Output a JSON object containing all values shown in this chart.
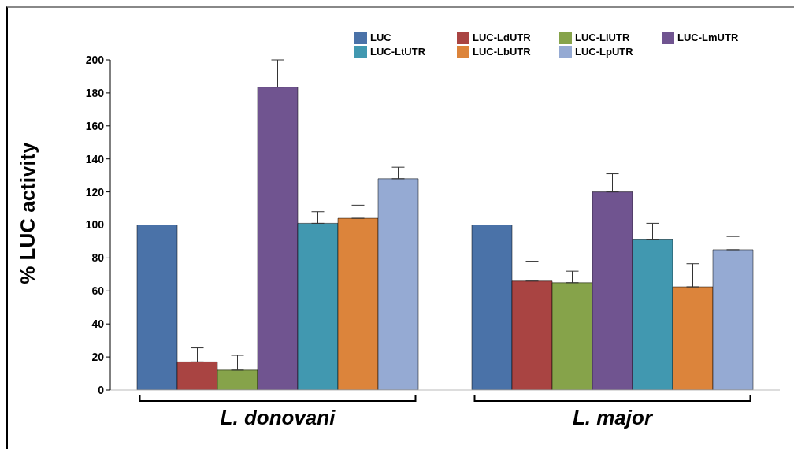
{
  "chart_data": {
    "type": "bar",
    "ylabel": "% LUC activity",
    "categories": [
      "L. donovani",
      "L. major"
    ],
    "series": [
      {
        "name": "LUC",
        "color": "#4a72a8",
        "values": [
          100,
          100
        ]
      },
      {
        "name": "LUC-LdUTR",
        "color": "#a94442",
        "values": [
          17,
          66
        ],
        "errors": [
          [
            17,
            25.5
          ],
          [
            66,
            78
          ]
        ]
      },
      {
        "name": "LUC-LiUTR",
        "color": "#86a34a",
        "values": [
          12,
          65
        ],
        "errors": [
          [
            12,
            21
          ],
          [
            65,
            72
          ]
        ]
      },
      {
        "name": "LUC-LmUTR",
        "color": "#705490",
        "values": [
          183.5,
          120
        ],
        "errors": [
          [
            183.5,
            200
          ],
          [
            120,
            131
          ]
        ]
      },
      {
        "name": "LUC-LtUTR",
        "color": "#4198b0",
        "values": [
          101,
          91
        ],
        "errors": [
          [
            101,
            108
          ],
          [
            91,
            101
          ]
        ]
      },
      {
        "name": "LUC-LbUTR",
        "color": "#dc843b",
        "values": [
          104,
          62.5
        ],
        "errors": [
          [
            104,
            112
          ],
          [
            62.5,
            76.5
          ]
        ]
      },
      {
        "name": "LUC-LpUTR",
        "color": "#95aad3",
        "values": [
          128,
          85
        ],
        "errors": [
          [
            128,
            135
          ],
          [
            85,
            93
          ]
        ]
      }
    ],
    "ylim": [
      0,
      200
    ],
    "yticks": [
      0,
      20,
      40,
      60,
      80,
      100,
      120,
      140,
      160,
      180,
      200
    ],
    "legend": "top right"
  }
}
